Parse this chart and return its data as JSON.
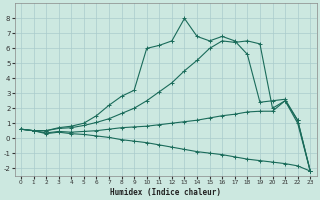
{
  "xlabel": "Humidex (Indice chaleur)",
  "bg_color": "#cce8e0",
  "grid_color": "#aacccc",
  "line_color": "#1a6b5a",
  "xlim": [
    -0.5,
    23.5
  ],
  "ylim": [
    -2.5,
    9.0
  ],
  "xticks": [
    0,
    1,
    2,
    3,
    4,
    5,
    6,
    7,
    8,
    9,
    10,
    11,
    12,
    13,
    14,
    15,
    16,
    17,
    18,
    19,
    20,
    21,
    22,
    23
  ],
  "yticks": [
    -2,
    -1,
    0,
    1,
    2,
    3,
    4,
    5,
    6,
    7,
    8
  ],
  "line1_x": [
    0,
    1,
    2,
    3,
    4,
    5,
    6,
    7,
    8,
    9,
    10,
    11,
    12,
    13,
    14,
    15,
    16,
    17,
    18,
    19,
    20,
    21,
    22,
    23
  ],
  "line1_y": [
    0.6,
    0.5,
    0.5,
    0.7,
    0.8,
    1.0,
    1.5,
    2.2,
    2.8,
    3.2,
    6.0,
    6.2,
    6.5,
    8.0,
    6.8,
    6.5,
    6.8,
    6.5,
    5.6,
    2.4,
    2.5,
    2.6,
    1.2,
    -2.2
  ],
  "line2_x": [
    0,
    1,
    2,
    3,
    4,
    5,
    6,
    7,
    8,
    9,
    10,
    11,
    12,
    13,
    14,
    15,
    16,
    17,
    18,
    19,
    20,
    21,
    22,
    23
  ],
  "line2_y": [
    0.6,
    0.5,
    0.5,
    0.65,
    0.7,
    0.85,
    1.05,
    1.3,
    1.65,
    2.0,
    2.5,
    3.1,
    3.7,
    4.5,
    5.2,
    6.0,
    6.5,
    6.4,
    6.5,
    6.3,
    2.0,
    2.5,
    1.2,
    -2.2
  ],
  "line3_x": [
    0,
    1,
    2,
    3,
    4,
    5,
    6,
    7,
    8,
    9,
    10,
    11,
    12,
    13,
    14,
    15,
    16,
    17,
    18,
    19,
    20,
    21,
    22,
    23
  ],
  "line3_y": [
    0.6,
    0.5,
    0.35,
    0.45,
    0.4,
    0.45,
    0.5,
    0.6,
    0.7,
    0.75,
    0.8,
    0.9,
    1.0,
    1.1,
    1.2,
    1.35,
    1.5,
    1.6,
    1.75,
    1.8,
    1.8,
    2.5,
    1.0,
    -2.2
  ],
  "line4_x": [
    0,
    1,
    2,
    3,
    4,
    5,
    6,
    7,
    8,
    9,
    10,
    11,
    12,
    13,
    14,
    15,
    16,
    17,
    18,
    19,
    20,
    21,
    22,
    23
  ],
  "line4_y": [
    0.6,
    0.5,
    0.3,
    0.4,
    0.3,
    0.25,
    0.15,
    0.05,
    -0.1,
    -0.2,
    -0.3,
    -0.45,
    -0.6,
    -0.75,
    -0.9,
    -1.0,
    -1.1,
    -1.25,
    -1.4,
    -1.5,
    -1.6,
    -1.7,
    -1.85,
    -2.2
  ]
}
